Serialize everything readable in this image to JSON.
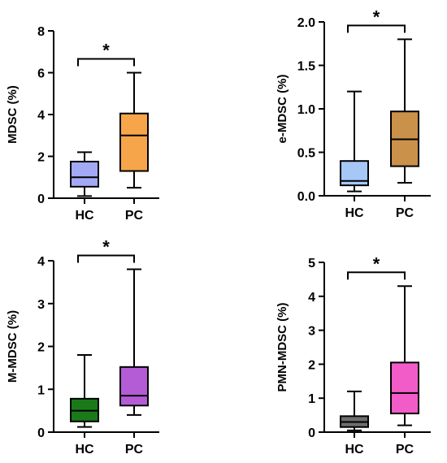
{
  "chart_data": [
    {
      "type": "box",
      "ylabel": "MDSC (%)",
      "ylim": [
        0,
        8
      ],
      "yticks": [
        "0",
        "2",
        "4",
        "6",
        "8"
      ],
      "categories": [
        "HC",
        "PC"
      ],
      "significance": "*",
      "boxes": [
        {
          "category": "HC",
          "min": 0.1,
          "q1": 0.55,
          "median": 1.0,
          "q3": 1.75,
          "max": 2.2,
          "color": "#a4a9f5"
        },
        {
          "category": "PC",
          "min": 0.5,
          "q1": 1.3,
          "median": 3.0,
          "q3": 4.05,
          "max": 6.0,
          "color": "#f7a54a"
        }
      ]
    },
    {
      "type": "box",
      "ylabel": "e-MDSC (%)",
      "ylim": [
        0,
        2.0
      ],
      "yticks": [
        "0.0",
        "0.5",
        "1.0",
        "1.5",
        "2.0"
      ],
      "categories": [
        "HC",
        "PC"
      ],
      "significance": "*",
      "boxes": [
        {
          "category": "HC",
          "min": 0.05,
          "q1": 0.12,
          "median": 0.17,
          "q3": 0.4,
          "max": 1.2,
          "color": "#a6c8f7"
        },
        {
          "category": "PC",
          "min": 0.15,
          "q1": 0.34,
          "median": 0.65,
          "q3": 0.97,
          "max": 1.8,
          "color": "#c9914a"
        }
      ]
    },
    {
      "type": "box",
      "ylabel": "M-MDSC (%)",
      "ylim": [
        0,
        4
      ],
      "yticks": [
        "0",
        "1",
        "2",
        "3",
        "4"
      ],
      "categories": [
        "HC",
        "PC"
      ],
      "significance": "*",
      "boxes": [
        {
          "category": "HC",
          "min": 0.12,
          "q1": 0.25,
          "median": 0.5,
          "q3": 0.78,
          "max": 1.8,
          "color": "#1a7a1a"
        },
        {
          "category": "PC",
          "min": 0.4,
          "q1": 0.62,
          "median": 0.85,
          "q3": 1.52,
          "max": 3.8,
          "color": "#b45cd6"
        }
      ]
    },
    {
      "type": "box",
      "ylabel": "PMN-MDSC (%)",
      "ylim": [
        0,
        5
      ],
      "yticks": [
        "0",
        "1",
        "2",
        "3",
        "4",
        "5"
      ],
      "categories": [
        "HC",
        "PC"
      ],
      "significance": "*",
      "boxes": [
        {
          "category": "HC",
          "min": 0.05,
          "q1": 0.15,
          "median": 0.3,
          "q3": 0.47,
          "max": 1.2,
          "color": "#6e6e6e"
        },
        {
          "category": "PC",
          "min": 0.2,
          "q1": 0.55,
          "median": 1.15,
          "q3": 2.05,
          "max": 4.3,
          "color": "#f25cc9"
        }
      ]
    }
  ]
}
